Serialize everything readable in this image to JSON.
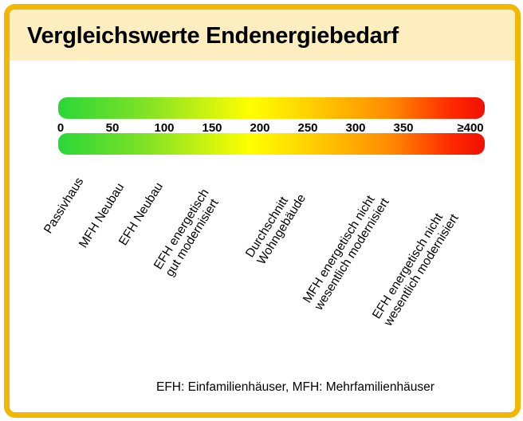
{
  "title": "Vergleichswerte Endenergiebedarf",
  "colors": {
    "border": "#f2b705",
    "title_background": "#fdeec0",
    "gradient": [
      "#2ad639",
      "#ffff00",
      "#ff8a00",
      "#f01000"
    ]
  },
  "scale": {
    "ticks": [
      "0",
      "50",
      "100",
      "150",
      "200",
      "250",
      "300",
      "350",
      "≥400"
    ]
  },
  "categories": [
    {
      "lines": [
        "Passivhaus"
      ]
    },
    {
      "lines": [
        "MFH Neubau"
      ]
    },
    {
      "lines": [
        "EFH Neubau"
      ]
    },
    {
      "lines": [
        "EFH energetisch",
        "gut modernisiert"
      ]
    },
    {
      "lines": [
        "Durchschnitt",
        "Wohngebäude"
      ]
    },
    {
      "lines": [
        "MFH energetisch nicht",
        "wesentlich modernisiert"
      ]
    },
    {
      "lines": [
        "EFH energetisch nicht",
        "wesentlich modernisiert"
      ]
    }
  ],
  "legend": "EFH: Einfamilienhäuser,   MFH: Mehrfamilienhäuser"
}
